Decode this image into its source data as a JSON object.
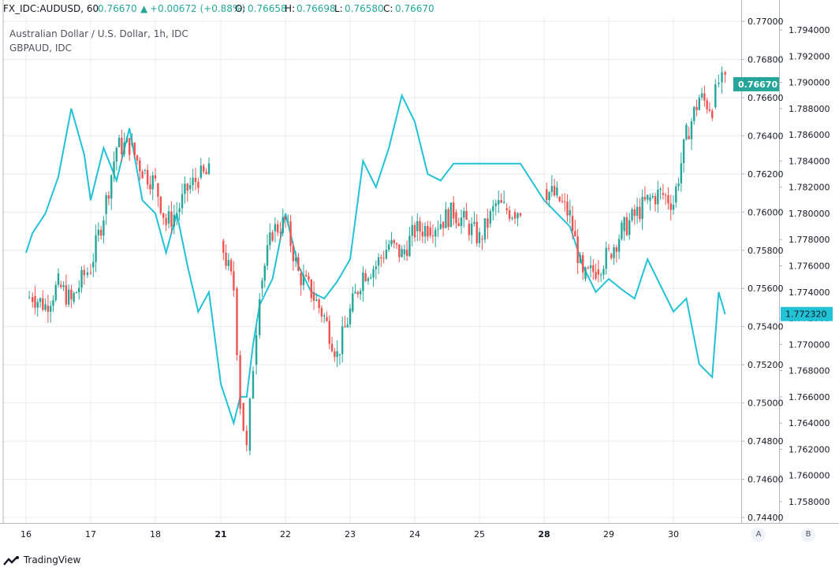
{
  "header": {
    "symbol": "FX_IDC:AUDUSD, 60",
    "last": "0.76670",
    "change": "+0.00672 (+0.88%)",
    "o_label": "O:",
    "o_val": "0.76658",
    "h_label": "H:",
    "h_val": "0.76698",
    "l_label": "L:",
    "l_val": "0.76580",
    "c_label": "C:",
    "c_val": "0.76670",
    "arrow_icon": "up-arrow-icon"
  },
  "series_titles": {
    "main": "Australian Dollar / U.S. Dollar, 1h, IDC",
    "compare": "GBPAUD, IDC"
  },
  "colors": {
    "up": "#26a69a",
    "down": "#ef5350",
    "compare_line": "#22c2d6",
    "grid": "#e8ecf1",
    "price_tag_a": "#26a69a",
    "price_tag_b": "#22c2d6"
  },
  "scale_buttons": {
    "a": "A",
    "b": "B"
  },
  "footer": {
    "brand": "TradingView",
    "logo_icon": "tradingview-logo-icon"
  },
  "chart_data": {
    "type": "candlestick-with-line-overlay",
    "x_labels": [
      "16",
      "17",
      "18",
      "21",
      "22",
      "23",
      "24",
      "25",
      "28",
      "29",
      "30"
    ],
    "x_labels_bold": [
      "21",
      "28"
    ],
    "y_left": {
      "series": "AUDUSD",
      "range": [
        0.744,
        0.77
      ],
      "ticks": [
        "0.77000",
        "0.76800",
        "0.76600",
        "0.76400",
        "0.76200",
        "0.76000",
        "0.75800",
        "0.75600",
        "0.75400",
        "0.75200",
        "0.75000",
        "0.74800",
        "0.74600",
        "0.74400"
      ],
      "last_value": "0.76670"
    },
    "y_right": {
      "series": "GBPAUD",
      "range": [
        1.7564,
        1.7952
      ],
      "ticks": [
        "1.794000",
        "1.792000",
        "1.790000",
        "1.788000",
        "1.786000",
        "1.784000",
        "1.782000",
        "1.780000",
        "1.778000",
        "1.776000",
        "1.774000",
        "1.772000",
        "1.770000",
        "1.768000",
        "1.766000",
        "1.764000",
        "1.762000",
        "1.760000",
        "1.758000"
      ],
      "last_value": "1.772320"
    },
    "audusd_path": [
      [
        16.0,
        0.7555
      ],
      [
        16.1,
        0.7556
      ],
      [
        16.3,
        0.7551
      ],
      [
        16.5,
        0.7562
      ],
      [
        16.7,
        0.7553
      ],
      [
        16.9,
        0.7567
      ],
      [
        17.0,
        0.7571
      ],
      [
        17.2,
        0.7599
      ],
      [
        17.4,
        0.7634
      ],
      [
        17.6,
        0.7635
      ],
      [
        17.8,
        0.7622
      ],
      [
        18.0,
        0.7615
      ],
      [
        18.2,
        0.7594
      ],
      [
        18.4,
        0.76
      ],
      [
        18.6,
        0.7612
      ],
      [
        18.8,
        0.7618
      ],
      [
        19.0,
        0.762
      ],
      [
        21.0,
        0.7585
      ],
      [
        21.2,
        0.756
      ],
      [
        21.3,
        0.75
      ],
      [
        21.4,
        0.7475
      ],
      [
        21.5,
        0.752
      ],
      [
        21.6,
        0.756
      ],
      [
        21.8,
        0.759
      ],
      [
        22.0,
        0.7595
      ],
      [
        22.2,
        0.7568
      ],
      [
        22.4,
        0.7558
      ],
      [
        22.6,
        0.7545
      ],
      [
        22.8,
        0.7525
      ],
      [
        23.0,
        0.7548
      ],
      [
        23.2,
        0.7568
      ],
      [
        23.4,
        0.7572
      ],
      [
        23.6,
        0.7583
      ],
      [
        23.8,
        0.7578
      ],
      [
        24.0,
        0.759
      ],
      [
        24.2,
        0.7592
      ],
      [
        24.4,
        0.7595
      ],
      [
        24.6,
        0.76
      ],
      [
        24.8,
        0.7594
      ],
      [
        25.0,
        0.7586
      ],
      [
        25.2,
        0.7594
      ],
      [
        25.4,
        0.7604
      ],
      [
        25.6,
        0.7602
      ],
      [
        25.8,
        0.76
      ],
      [
        26.0,
        0.7602
      ],
      [
        28.0,
        0.7612
      ],
      [
        28.2,
        0.7608
      ],
      [
        28.4,
        0.7598
      ],
      [
        28.6,
        0.7565
      ],
      [
        28.8,
        0.757
      ],
      [
        29.0,
        0.7578
      ],
      [
        29.2,
        0.759
      ],
      [
        29.4,
        0.7598
      ],
      [
        29.6,
        0.7606
      ],
      [
        29.8,
        0.761
      ],
      [
        30.0,
        0.7605
      ],
      [
        30.2,
        0.764
      ],
      [
        30.4,
        0.766
      ],
      [
        30.6,
        0.7655
      ],
      [
        30.7,
        0.7668
      ],
      [
        30.8,
        0.7667
      ]
    ],
    "gbpaud_path": [
      [
        16.0,
        1.777
      ],
      [
        16.1,
        1.7785
      ],
      [
        16.3,
        1.78
      ],
      [
        16.5,
        1.7828
      ],
      [
        16.7,
        1.788
      ],
      [
        16.9,
        1.7845
      ],
      [
        17.0,
        1.781
      ],
      [
        17.2,
        1.785
      ],
      [
        17.4,
        1.7825
      ],
      [
        17.6,
        1.7865
      ],
      [
        17.8,
        1.781
      ],
      [
        18.0,
        1.78
      ],
      [
        18.2,
        1.777
      ],
      [
        18.4,
        1.78
      ],
      [
        18.6,
        1.776
      ],
      [
        18.8,
        1.7725
      ],
      [
        19.0,
        1.774
      ],
      [
        21.0,
        1.767
      ],
      [
        21.2,
        1.764
      ],
      [
        21.3,
        1.766
      ],
      [
        21.4,
        1.766
      ],
      [
        21.5,
        1.77
      ],
      [
        21.6,
        1.773
      ],
      [
        21.8,
        1.775
      ],
      [
        22.0,
        1.78
      ],
      [
        22.2,
        1.776
      ],
      [
        22.4,
        1.774
      ],
      [
        22.6,
        1.7735
      ],
      [
        22.8,
        1.7748
      ],
      [
        23.0,
        1.7765
      ],
      [
        23.2,
        1.784
      ],
      [
        23.4,
        1.782
      ],
      [
        23.6,
        1.785
      ],
      [
        23.8,
        1.789
      ],
      [
        24.0,
        1.787
      ],
      [
        24.2,
        1.783
      ],
      [
        24.4,
        1.7825
      ],
      [
        24.6,
        1.7838
      ],
      [
        24.8,
        1.7838
      ],
      [
        25.0,
        1.7838
      ],
      [
        25.2,
        1.7838
      ],
      [
        25.4,
        1.7838
      ],
      [
        25.6,
        1.7838
      ],
      [
        25.8,
        1.7838
      ],
      [
        26.0,
        1.7838
      ],
      [
        28.0,
        1.781
      ],
      [
        28.2,
        1.78
      ],
      [
        28.4,
        1.779
      ],
      [
        28.6,
        1.776
      ],
      [
        28.8,
        1.774
      ],
      [
        29.0,
        1.775
      ],
      [
        29.2,
        1.7742
      ],
      [
        29.4,
        1.7735
      ],
      [
        29.6,
        1.7765
      ],
      [
        29.8,
        1.7745
      ],
      [
        30.0,
        1.7725
      ],
      [
        30.2,
        1.7735
      ],
      [
        30.4,
        1.7685
      ],
      [
        30.6,
        1.7675
      ],
      [
        30.7,
        1.774
      ],
      [
        30.8,
        1.7723
      ]
    ]
  }
}
